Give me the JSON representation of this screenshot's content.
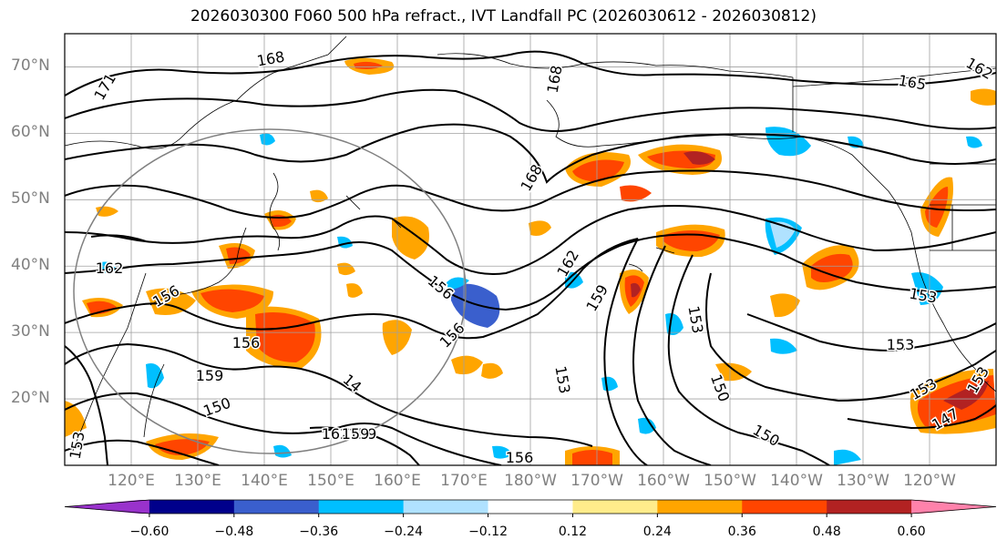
{
  "title": "2026030300 F060 500 hPa refract., IVT Landfall PC (2026030612 - 2026030812)",
  "map": {
    "projection": "PlateCarree",
    "lon_range_deg_east": [
      110,
      250
    ],
    "lat_range": [
      10,
      75
    ],
    "lat_ticks": [
      {
        "value": 70,
        "label": "70°N"
      },
      {
        "value": 60,
        "label": "60°N"
      },
      {
        "value": 50,
        "label": "50°N"
      },
      {
        "value": 40,
        "label": "40°N"
      },
      {
        "value": 30,
        "label": "30°N"
      },
      {
        "value": 20,
        "label": "20°N"
      }
    ],
    "lon_ticks": [
      {
        "value": 120,
        "label": "120°E"
      },
      {
        "value": 130,
        "label": "130°E"
      },
      {
        "value": 140,
        "label": "140°E"
      },
      {
        "value": 150,
        "label": "150°E"
      },
      {
        "value": 160,
        "label": "160°E"
      },
      {
        "value": 170,
        "label": "170°E"
      },
      {
        "value": 180,
        "label": "180°W"
      },
      {
        "value": 190,
        "label": "170°W"
      },
      {
        "value": 200,
        "label": "160°W"
      },
      {
        "value": 210,
        "label": "150°W"
      },
      {
        "value": 220,
        "label": "140°W"
      },
      {
        "value": 230,
        "label": "130°W"
      },
      {
        "value": 240,
        "label": "120°W"
      }
    ],
    "contour_labels": [
      "171",
      "168",
      "168",
      "165",
      "162",
      "168",
      "162",
      "159",
      "156",
      "159",
      "156",
      "150",
      "153",
      "153",
      "150",
      "153",
      "156",
      "159",
      "150",
      "153",
      "147",
      "153",
      "162",
      "159",
      "14",
      "156",
      "162",
      "153",
      "153",
      "156"
    ]
  },
  "colorbar": {
    "colors": [
      "#9932cc",
      "#00008b",
      "#3a5fcd",
      "#00bfff",
      "#b0e2ff",
      "#ffffff",
      "#ffec8b",
      "#ffa500",
      "#ff4500",
      "#b22222",
      "#ff82ab"
    ],
    "ticks": [
      "−0.60",
      "−0.48",
      "−0.36",
      "−0.24",
      "−0.12",
      "0.12",
      "0.24",
      "0.36",
      "0.48",
      "0.60"
    ]
  },
  "colors": {
    "contour": "#000000",
    "grid": "#a0a0a0",
    "circle": "#808080",
    "coast": "#000000"
  }
}
